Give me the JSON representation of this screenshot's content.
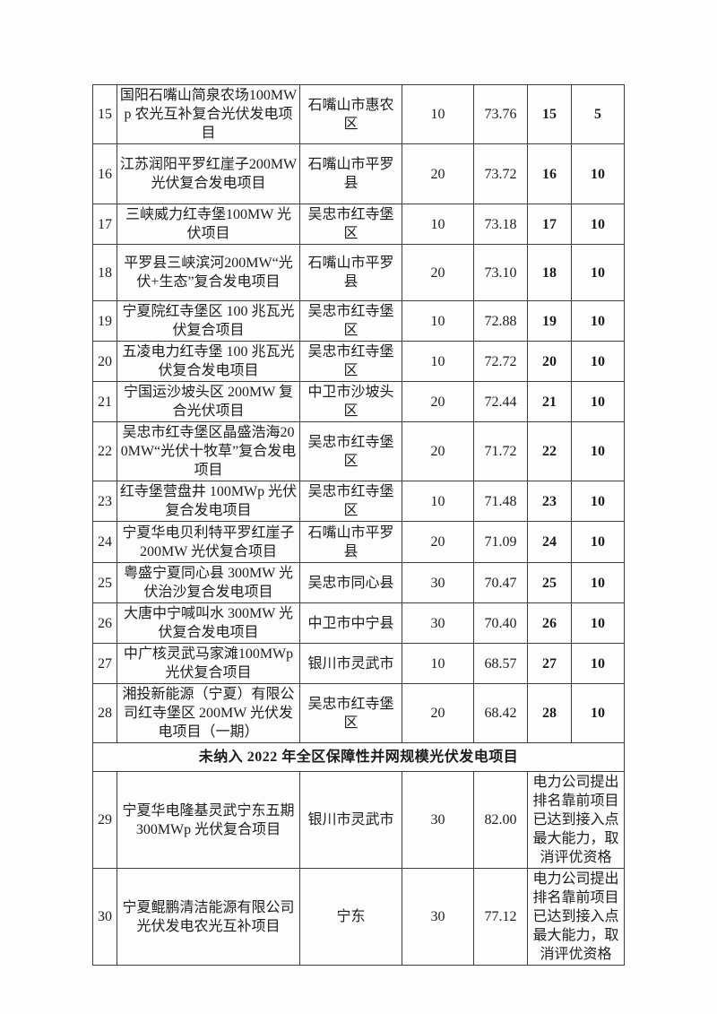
{
  "page": {
    "background_color": "#fdfdfd",
    "text_color": "#1c1c1c",
    "border_color": "#3c3c3c"
  },
  "table": {
    "section2_title": "未纳入 2022 年全区保障性并网规模光伏发电项目",
    "rows_section1": [
      {
        "no": "15",
        "name": "国阳石嘴山简泉农场100MWp 农光互补复合光伏发电项目",
        "location": "石嘴山市惠农区",
        "capacity": "10",
        "score": "73.76",
        "rank": "15",
        "points": "5"
      },
      {
        "no": "16",
        "name": "江苏润阳平罗红崖子200MW 光伏复合发电项目",
        "location": "石嘴山市平罗县",
        "capacity": "20",
        "score": "73.72",
        "rank": "16",
        "points": "10"
      },
      {
        "no": "17",
        "name": "三峡威力红寺堡100MW 光伏项目",
        "location": "吴忠市红寺堡区",
        "capacity": "10",
        "score": "73.18",
        "rank": "17",
        "points": "10"
      },
      {
        "no": "18",
        "name": "平罗县三峡滨河200MW“光伏+生态”复合发电项目",
        "location": "石嘴山市平罗县",
        "capacity": "20",
        "score": "73.10",
        "rank": "18",
        "points": "10"
      },
      {
        "no": "19",
        "name": "宁夏院红寺堡区 100 兆瓦光伏复合项目",
        "location": "吴忠市红寺堡区",
        "capacity": "10",
        "score": "72.88",
        "rank": "19",
        "points": "10"
      },
      {
        "no": "20",
        "name": "五凌电力红寺堡 100 兆瓦光伏复合发电项目",
        "location": "吴忠市红寺堡区",
        "capacity": "10",
        "score": "72.72",
        "rank": "20",
        "points": "10"
      },
      {
        "no": "21",
        "name": "宁国运沙坡头区 200MW 复合光伏项目",
        "location": "中卫市沙坡头区",
        "capacity": "20",
        "score": "72.44",
        "rank": "21",
        "points": "10"
      },
      {
        "no": "22",
        "name": "吴忠市红寺堡区晶盛浩海200MW“光伏十牧草”复合发电项目",
        "location": "吴忠市红寺堡区",
        "capacity": "20",
        "score": "71.72",
        "rank": "22",
        "points": "10"
      },
      {
        "no": "23",
        "name": "红寺堡营盘井 100MWp 光伏复合发电项目",
        "location": "吴忠市红寺堡区",
        "capacity": "10",
        "score": "71.48",
        "rank": "23",
        "points": "10"
      },
      {
        "no": "24",
        "name": "宁夏华电贝利特平罗红崖子 200MW 光伏复合项目",
        "location": "石嘴山市平罗县",
        "capacity": "20",
        "score": "71.09",
        "rank": "24",
        "points": "10"
      },
      {
        "no": "25",
        "name": "粤盛宁夏同心县 300MW 光伏治沙复合发电项目",
        "location": "吴忠市同心县",
        "capacity": "30",
        "score": "70.47",
        "rank": "25",
        "points": "10"
      },
      {
        "no": "26",
        "name": "大唐中宁喊叫水 300MW 光伏复合发电项目",
        "location": "中卫市中宁县",
        "capacity": "30",
        "score": "70.40",
        "rank": "26",
        "points": "10"
      },
      {
        "no": "27",
        "name": "中广核灵武马家滩100MWp 光伏复合项目",
        "location": "银川市灵武市",
        "capacity": "10",
        "score": "68.57",
        "rank": "27",
        "points": "10"
      },
      {
        "no": "28",
        "name": "湘投新能源（宁夏）有限公司红寺堡区 200MW 光伏发电项目（一期）",
        "location": "吴忠市红寺堡区",
        "capacity": "20",
        "score": "68.42",
        "rank": "28",
        "points": "10"
      }
    ],
    "rows_section2": [
      {
        "no": "29",
        "name": "宁夏华电隆基灵武宁东五期 300MWp 光伏复合项目",
        "location": "银川市灵武市",
        "capacity": "30",
        "score": "82.00",
        "remark": "电力公司提出排名靠前项目已达到接入点最大能力，取消评优资格"
      },
      {
        "no": "30",
        "name": "宁夏鲲鹏清洁能源有限公司光伏发电农光互补项目",
        "location": "宁东",
        "capacity": "30",
        "score": "77.12",
        "remark": "电力公司提出排名靠前项目已达到接入点最大能力，取消评优资格"
      }
    ]
  }
}
